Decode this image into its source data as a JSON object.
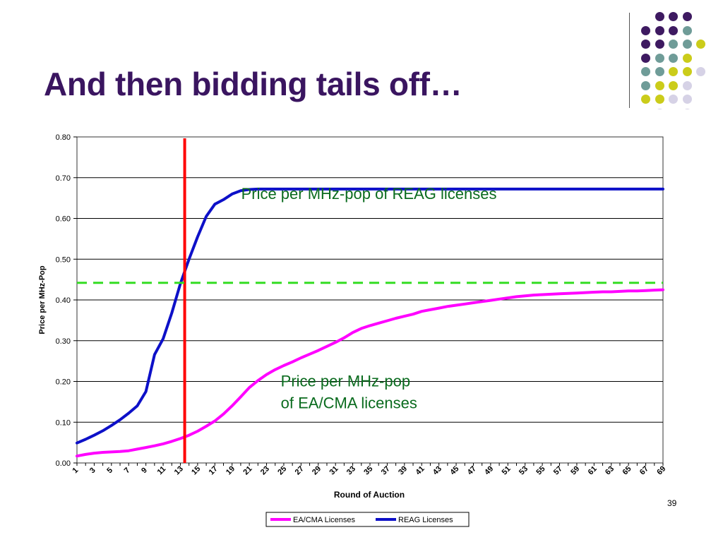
{
  "slide": {
    "title": "And then bidding tails off…",
    "number": "39"
  },
  "decor": {
    "colors": {
      "purple": "#3e1a61",
      "teal": "#6f9c98",
      "yellow": "#cbcc1a",
      "lavender": "#d6d2e6"
    },
    "rows": [
      [
        "none",
        "purple",
        "purple",
        "purple"
      ],
      [
        "purple",
        "purple",
        "purple",
        "teal"
      ],
      [
        "purple",
        "purple",
        "teal",
        "teal",
        "yellow"
      ],
      [
        "purple",
        "teal",
        "teal",
        "yellow"
      ],
      [
        "teal",
        "teal",
        "yellow",
        "yellow",
        "lavender"
      ],
      [
        "teal",
        "yellow",
        "yellow",
        "lavender"
      ],
      [
        "yellow",
        "yellow",
        "lavender",
        "lavender"
      ],
      [
        "none",
        "lavender",
        "none",
        "lavender"
      ]
    ]
  },
  "chart_data": {
    "type": "line",
    "title": "",
    "xlabel": "Round of Auction",
    "ylabel": "Price per MHz-Pop",
    "xlim": [
      1,
      69
    ],
    "ylim": [
      0,
      0.8
    ],
    "grid": true,
    "x_ticks": [
      1,
      3,
      5,
      7,
      9,
      11,
      13,
      15,
      17,
      19,
      21,
      23,
      25,
      27,
      29,
      31,
      33,
      35,
      37,
      39,
      41,
      43,
      45,
      47,
      49,
      51,
      53,
      55,
      57,
      59,
      61,
      63,
      65,
      67,
      69
    ],
    "y_ticks": [
      "0.00",
      "0.10",
      "0.20",
      "0.30",
      "0.40",
      "0.50",
      "0.60",
      "0.70",
      "0.80"
    ],
    "series": [
      {
        "name": "EA/CMA Licenses",
        "color": "#ff00ff",
        "points": [
          [
            1,
            0.017
          ],
          [
            2,
            0.021
          ],
          [
            3,
            0.024
          ],
          [
            4,
            0.026
          ],
          [
            5,
            0.027
          ],
          [
            6,
            0.028
          ],
          [
            7,
            0.03
          ],
          [
            8,
            0.034
          ],
          [
            9,
            0.038
          ],
          [
            10,
            0.042
          ],
          [
            11,
            0.047
          ],
          [
            12,
            0.053
          ],
          [
            13,
            0.06
          ],
          [
            14,
            0.068
          ],
          [
            15,
            0.078
          ],
          [
            16,
            0.09
          ],
          [
            17,
            0.103
          ],
          [
            18,
            0.12
          ],
          [
            19,
            0.14
          ],
          [
            20,
            0.162
          ],
          [
            21,
            0.185
          ],
          [
            22,
            0.202
          ],
          [
            23,
            0.217
          ],
          [
            24,
            0.229
          ],
          [
            25,
            0.239
          ],
          [
            26,
            0.248
          ],
          [
            27,
            0.258
          ],
          [
            28,
            0.267
          ],
          [
            29,
            0.276
          ],
          [
            30,
            0.286
          ],
          [
            31,
            0.296
          ],
          [
            32,
            0.307
          ],
          [
            33,
            0.32
          ],
          [
            34,
            0.33
          ],
          [
            35,
            0.337
          ],
          [
            36,
            0.343
          ],
          [
            37,
            0.349
          ],
          [
            38,
            0.355
          ],
          [
            39,
            0.36
          ],
          [
            40,
            0.365
          ],
          [
            41,
            0.372
          ],
          [
            42,
            0.376
          ],
          [
            43,
            0.38
          ],
          [
            44,
            0.384
          ],
          [
            45,
            0.387
          ],
          [
            46,
            0.39
          ],
          [
            47,
            0.393
          ],
          [
            48,
            0.396
          ],
          [
            49,
            0.399
          ],
          [
            50,
            0.402
          ],
          [
            51,
            0.405
          ],
          [
            52,
            0.408
          ],
          [
            53,
            0.41
          ],
          [
            54,
            0.412
          ],
          [
            55,
            0.413
          ],
          [
            56,
            0.414
          ],
          [
            57,
            0.415
          ],
          [
            58,
            0.416
          ],
          [
            59,
            0.417
          ],
          [
            60,
            0.418
          ],
          [
            61,
            0.419
          ],
          [
            62,
            0.42
          ],
          [
            63,
            0.42
          ],
          [
            64,
            0.421
          ],
          [
            65,
            0.422
          ],
          [
            66,
            0.422
          ],
          [
            67,
            0.423
          ],
          [
            68,
            0.424
          ],
          [
            69,
            0.425
          ]
        ]
      },
      {
        "name": "REAG Licenses",
        "color": "#0d10c8",
        "points": [
          [
            1,
            0.049
          ],
          [
            2,
            0.058
          ],
          [
            3,
            0.068
          ],
          [
            4,
            0.079
          ],
          [
            5,
            0.092
          ],
          [
            6,
            0.106
          ],
          [
            7,
            0.122
          ],
          [
            8,
            0.14
          ],
          [
            9,
            0.175
          ],
          [
            10,
            0.266
          ],
          [
            11,
            0.305
          ],
          [
            12,
            0.368
          ],
          [
            13,
            0.44
          ],
          [
            14,
            0.5
          ],
          [
            15,
            0.555
          ],
          [
            16,
            0.605
          ],
          [
            17,
            0.635
          ],
          [
            18,
            0.646
          ],
          [
            19,
            0.66
          ],
          [
            20,
            0.668
          ],
          [
            21,
            0.671
          ],
          [
            22,
            0.672
          ],
          [
            30,
            0.672
          ],
          [
            40,
            0.672
          ],
          [
            50,
            0.672
          ],
          [
            60,
            0.672
          ],
          [
            69,
            0.672
          ]
        ]
      }
    ],
    "reference_lines": [
      {
        "kind": "vertical",
        "x": 13.5,
        "color": "#ff0000"
      },
      {
        "kind": "horizontal",
        "y": 0.442,
        "color": "#33dd22",
        "style": "dashed"
      }
    ],
    "annotations": [
      {
        "lines": [
          "Price per MHz-pop of REAG licenses"
        ],
        "color": "#0a6b1e",
        "anchor": "left",
        "x": 13.5,
        "y": 0.7
      },
      {
        "lines": [
          "Price per MHz-pop",
          "of EA/CMA licenses"
        ],
        "color": "#0a6b1e",
        "anchor": "left",
        "x": 14,
        "y": 0.2
      }
    ],
    "legend": {
      "placement": "bottom-center",
      "entries": [
        "EA/CMA Licenses",
        "REAG Licenses"
      ]
    }
  }
}
